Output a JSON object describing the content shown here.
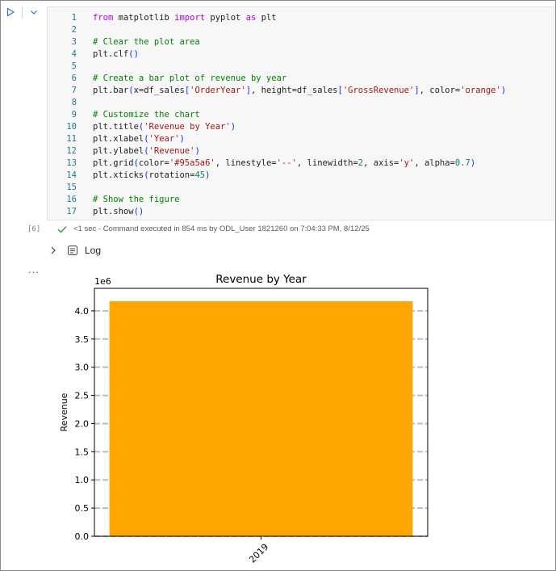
{
  "cell": {
    "execution_count": "[6]",
    "code_lines": [
      {
        "n": "1",
        "text": "from matplotlib import pyplot as plt"
      },
      {
        "n": "2",
        "text": ""
      },
      {
        "n": "3",
        "text": "# Clear the plot area"
      },
      {
        "n": "4",
        "text": "plt.clf()"
      },
      {
        "n": "5",
        "text": ""
      },
      {
        "n": "6",
        "text": "# Create a bar plot of revenue by year"
      },
      {
        "n": "7",
        "text": "plt.bar(x=df_sales['OrderYear'], height=df_sales['GrossRevenue'], color='orange')"
      },
      {
        "n": "8",
        "text": ""
      },
      {
        "n": "9",
        "text": "# Customize the chart"
      },
      {
        "n": "10",
        "text": "plt.title('Revenue by Year')"
      },
      {
        "n": "11",
        "text": "plt.xlabel('Year')"
      },
      {
        "n": "12",
        "text": "plt.ylabel('Revenue')"
      },
      {
        "n": "13",
        "text": "plt.grid(color='#95a5a6', linestyle='--', linewidth=2, axis='y', alpha=0.7)"
      },
      {
        "n": "14",
        "text": "plt.xticks(rotation=45)"
      },
      {
        "n": "15",
        "text": ""
      },
      {
        "n": "16",
        "text": "# Show the figure"
      },
      {
        "n": "17",
        "text": "plt.show()"
      }
    ],
    "status_text": "<1 sec - Command executed in 854 ms by ODL_User 1821260 on 7:04:33 PM, 8/12/25",
    "log_label": "Log",
    "output_ellipsis": "...",
    "icons": {
      "run": "play-icon",
      "expand": "chevron-down-icon",
      "status": "checkmark-icon",
      "log_toggle": "chevron-right-icon",
      "log": "log-icon"
    },
    "colors": {
      "keyword": "#af00db",
      "string": "#a31515",
      "comment": "#008000",
      "number": "#098658",
      "line_number": "#237893",
      "check": "#2e9c4a"
    }
  },
  "chart_data": {
    "type": "bar",
    "title": "Revenue by Year",
    "xlabel": "",
    "ylabel": "Revenue",
    "categories": [
      "2019"
    ],
    "values": [
      4170000
    ],
    "color": "#ffa500",
    "grid_color": "#95a5a6",
    "grid": "y",
    "ylim": [
      0,
      4400000
    ],
    "y_ticks": [
      0,
      500000,
      1000000,
      1500000,
      2000000,
      2500000,
      3000000,
      3500000,
      4000000
    ],
    "y_tick_labels": [
      "0.0",
      "0.5",
      "1.0",
      "1.5",
      "2.0",
      "2.5",
      "3.0",
      "3.5",
      "4.0"
    ],
    "offset_label": "1e6",
    "xtick_rotation": 45
  }
}
